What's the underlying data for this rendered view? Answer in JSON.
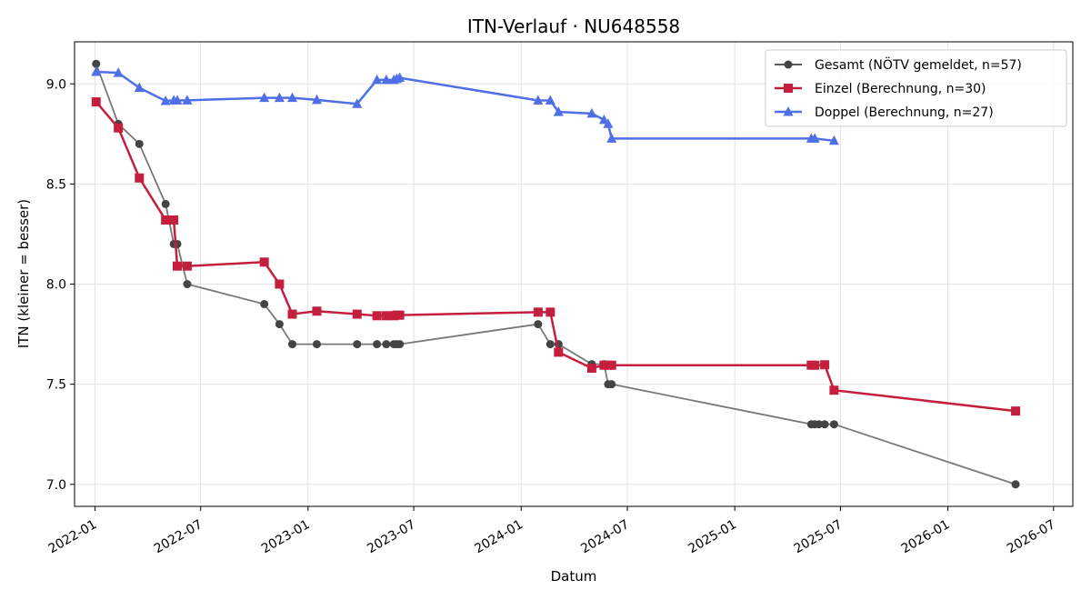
{
  "chart_data": {
    "type": "line",
    "title": "ITN-Verlauf · NU648558",
    "xlabel": "Datum",
    "ylabel": "ITN  (kleiner = besser)",
    "x_is_date": true,
    "xlim": [
      "2021-11-27",
      "2026-08-03"
    ],
    "ylim": [
      6.89,
      9.21
    ],
    "x_ticks": [
      "2022-01",
      "2022-07",
      "2023-01",
      "2023-07",
      "2024-01",
      "2024-07",
      "2025-01",
      "2025-07",
      "2026-01",
      "2026-07"
    ],
    "y_ticks": [
      "7.0",
      "7.5",
      "8.0",
      "8.5",
      "9.0"
    ],
    "grid": true,
    "legend_position": "top-right",
    "series": [
      {
        "name": "Gesamt (NÖTV gemeldet, n=57)",
        "color": "#444444",
        "marker": "circle",
        "points": [
          [
            "2022-01-03",
            9.1
          ],
          [
            "2022-02-10",
            8.8
          ],
          [
            "2022-03-18",
            8.7
          ],
          [
            "2022-05-02",
            8.4
          ],
          [
            "2022-05-16",
            8.2
          ],
          [
            "2022-05-22",
            8.2
          ],
          [
            "2022-06-08",
            8.0
          ],
          [
            "2022-10-18",
            7.9
          ],
          [
            "2022-11-13",
            7.8
          ],
          [
            "2022-12-05",
            7.7
          ],
          [
            "2023-01-16",
            7.7
          ],
          [
            "2023-03-26",
            7.7
          ],
          [
            "2023-04-29",
            7.7
          ],
          [
            "2023-05-15",
            7.7
          ],
          [
            "2023-05-28",
            7.7
          ],
          [
            "2023-06-02",
            7.7
          ],
          [
            "2023-06-07",
            7.7
          ],
          [
            "2024-01-30",
            7.8
          ],
          [
            "2024-02-20",
            7.7
          ],
          [
            "2024-03-05",
            7.7
          ],
          [
            "2024-05-01",
            7.6
          ],
          [
            "2024-05-22",
            7.6
          ],
          [
            "2024-05-29",
            7.5
          ],
          [
            "2024-06-04",
            7.5
          ],
          [
            "2025-05-12",
            7.3
          ],
          [
            "2025-05-18",
            7.3
          ],
          [
            "2025-05-25",
            7.3
          ],
          [
            "2025-06-04",
            7.3
          ],
          [
            "2025-06-20",
            7.3
          ],
          [
            "2026-04-27",
            7.0
          ]
        ]
      },
      {
        "name": "Einzel (Berechnung, n=30)",
        "color": "#c41f3d",
        "marker": "square",
        "points": [
          [
            "2022-01-03",
            8.91
          ],
          [
            "2022-02-10",
            8.78
          ],
          [
            "2022-03-18",
            8.53
          ],
          [
            "2022-05-02",
            8.32
          ],
          [
            "2022-05-16",
            8.32
          ],
          [
            "2022-05-22",
            8.09
          ],
          [
            "2022-06-08",
            8.09
          ],
          [
            "2022-10-18",
            8.11
          ],
          [
            "2022-11-13",
            8.0
          ],
          [
            "2022-12-05",
            7.85
          ],
          [
            "2023-01-16",
            7.865
          ],
          [
            "2023-03-26",
            7.85
          ],
          [
            "2023-04-29",
            7.842
          ],
          [
            "2023-05-15",
            7.842
          ],
          [
            "2023-05-28",
            7.842
          ],
          [
            "2023-06-02",
            7.845
          ],
          [
            "2023-06-07",
            7.845
          ],
          [
            "2024-01-30",
            7.86
          ],
          [
            "2024-02-20",
            7.86
          ],
          [
            "2024-03-05",
            7.66
          ],
          [
            "2024-05-01",
            7.58
          ],
          [
            "2024-05-22",
            7.595
          ],
          [
            "2024-05-29",
            7.595
          ],
          [
            "2024-06-04",
            7.595
          ],
          [
            "2025-05-12",
            7.595
          ],
          [
            "2025-05-18",
            7.595
          ],
          [
            "2025-06-04",
            7.597
          ],
          [
            "2025-06-20",
            7.47
          ],
          [
            "2026-04-27",
            7.366
          ]
        ]
      },
      {
        "name": "Doppel (Berechnung, n=27)",
        "color": "#4f6fe6",
        "marker": "triangle",
        "points": [
          [
            "2022-01-03",
            9.06
          ],
          [
            "2022-02-10",
            9.055
          ],
          [
            "2022-03-18",
            8.98
          ],
          [
            "2022-05-02",
            8.915
          ],
          [
            "2022-05-16",
            8.918
          ],
          [
            "2022-05-22",
            8.918
          ],
          [
            "2022-06-08",
            8.918
          ],
          [
            "2022-10-18",
            8.93
          ],
          [
            "2022-11-13",
            8.93
          ],
          [
            "2022-12-05",
            8.93
          ],
          [
            "2023-01-16",
            8.92
          ],
          [
            "2023-03-26",
            8.9
          ],
          [
            "2023-04-29",
            9.02
          ],
          [
            "2023-05-15",
            9.02
          ],
          [
            "2023-05-28",
            9.02
          ],
          [
            "2023-06-02",
            9.025
          ],
          [
            "2023-06-07",
            9.03
          ],
          [
            "2024-01-30",
            8.917
          ],
          [
            "2024-02-20",
            8.917
          ],
          [
            "2024-03-05",
            8.86
          ],
          [
            "2024-05-01",
            8.852
          ],
          [
            "2024-05-22",
            8.82
          ],
          [
            "2024-05-29",
            8.8
          ],
          [
            "2024-06-04",
            8.727
          ],
          [
            "2025-05-12",
            8.727
          ],
          [
            "2025-05-18",
            8.727
          ],
          [
            "2025-06-20",
            8.716
          ]
        ]
      }
    ]
  }
}
